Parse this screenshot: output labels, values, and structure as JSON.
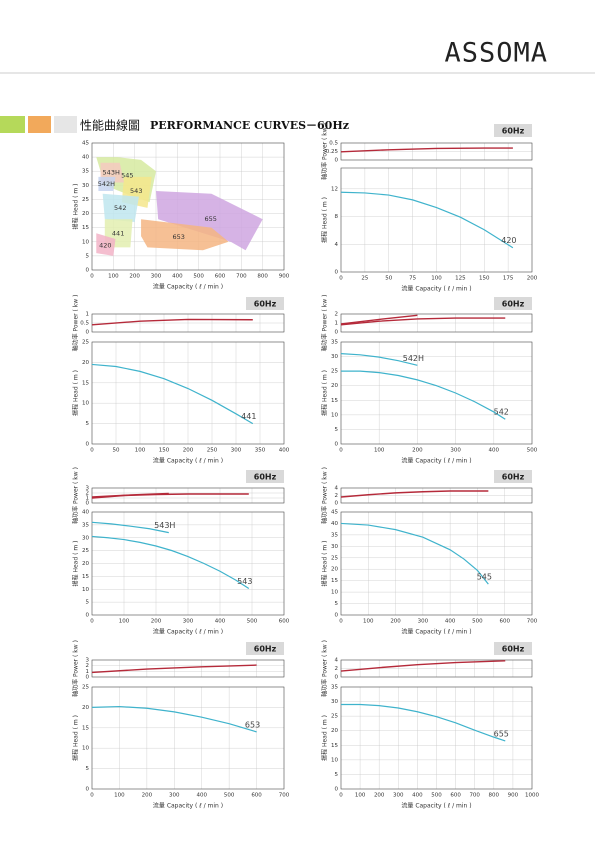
{
  "header": {
    "logo": "ASSOMA",
    "title_zh": "性能曲線圖",
    "title_en": "PERFORMANCE CURVES－60Hz"
  },
  "chart_data": [
    {
      "type": "region",
      "ylabel": "揚程 Head ( m )",
      "xlabel": "流量 Capacity ( ℓ / min )",
      "xlim": [
        0,
        900
      ],
      "xticks": [
        0,
        100,
        200,
        300,
        400,
        500,
        600,
        700,
        800,
        900
      ],
      "ylim": [
        0,
        45
      ],
      "yticks": [
        0,
        5,
        10,
        15,
        20,
        25,
        30,
        35,
        40,
        45
      ],
      "grid": true,
      "series": [
        {
          "name": "545",
          "color": "#d6eaa0",
          "x": [
            20,
            120,
            230,
            300,
            270,
            160,
            60
          ],
          "values": [
            40,
            40,
            39,
            35,
            24,
            27,
            30
          ]
        },
        {
          "name": "655",
          "color": "#cfa6e0",
          "x": [
            300,
            560,
            800,
            720,
            650,
            310
          ],
          "values": [
            28,
            27,
            18,
            7,
            10,
            18
          ]
        },
        {
          "name": "653",
          "color": "#f4b582",
          "x": [
            230,
            560,
            640,
            520,
            260,
            230
          ],
          "values": [
            18,
            15,
            10,
            7,
            8,
            12
          ]
        },
        {
          "name": "543",
          "color": "#f5e68c",
          "x": [
            150,
            280,
            260,
            140
          ],
          "values": [
            33,
            33,
            22,
            24
          ]
        },
        {
          "name": "543H",
          "color": "#f5c9c0",
          "x": [
            40,
            130,
            150,
            40
          ],
          "values": [
            38,
            38,
            31,
            31
          ]
        },
        {
          "name": "542H",
          "color": "#c6d4f0",
          "x": [
            30,
            110,
            100,
            30
          ],
          "values": [
            33,
            33,
            28,
            28
          ]
        },
        {
          "name": "542",
          "color": "#bfe6ef",
          "x": [
            50,
            220,
            200,
            60
          ],
          "values": [
            27,
            26,
            17,
            18
          ]
        },
        {
          "name": "441",
          "color": "#e3efb0",
          "x": [
            60,
            190,
            180,
            60
          ],
          "values": [
            18,
            18,
            8,
            8
          ]
        },
        {
          "name": "420",
          "color": "#f2b3c7",
          "x": [
            20,
            110,
            100,
            20
          ],
          "values": [
            13,
            11,
            5,
            6
          ]
        }
      ]
    },
    {
      "type": "pump",
      "badge": "60Hz",
      "xlabel": "流量 Capacity ( ℓ / min )",
      "xlim": [
        0,
        200
      ],
      "xticks": [
        0,
        25,
        50,
        75,
        100,
        125,
        150,
        175,
        200
      ],
      "power": {
        "ylabel": "軸功率 Power ( kw )",
        "ylim": [
          0,
          0.5
        ],
        "yticks": [
          0,
          0.25,
          0.5
        ],
        "series": [
          {
            "color": "#b52a3a",
            "x": [
              0,
              50,
              100,
              150,
              180
            ],
            "values": [
              0.24,
              0.3,
              0.34,
              0.35,
              0.35
            ]
          }
        ]
      },
      "head": {
        "ylabel": "揚程 Head ( m )",
        "ylim": [
          0,
          15
        ],
        "yticks": [
          0,
          4,
          8,
          12
        ],
        "series": [
          {
            "name": "420",
            "color": "#3fb3cc",
            "x": [
              0,
              25,
              50,
              75,
              100,
              125,
              150,
              180
            ],
            "values": [
              11.5,
              11.4,
              11.1,
              10.4,
              9.3,
              7.9,
              6.1,
              3.5
            ]
          }
        ]
      }
    },
    {
      "type": "pump",
      "badge": "60Hz",
      "xlabel": "流量 Capacity ( ℓ / min )",
      "xlim": [
        0,
        400
      ],
      "xticks": [
        0,
        50,
        100,
        150,
        200,
        250,
        300,
        350,
        400
      ],
      "power": {
        "ylabel": "軸功率 Power ( kw )",
        "ylim": [
          0,
          1
        ],
        "yticks": [
          0,
          0.5,
          1
        ],
        "series": [
          {
            "color": "#b52a3a",
            "x": [
              0,
              100,
              200,
              335
            ],
            "values": [
              0.4,
              0.6,
              0.7,
              0.68
            ]
          }
        ]
      },
      "head": {
        "ylabel": "揚程 Head ( m )",
        "ylim": [
          0,
          25
        ],
        "yticks": [
          0,
          5,
          10,
          15,
          20,
          25
        ],
        "series": [
          {
            "name": "441",
            "color": "#3fb3cc",
            "x": [
              0,
              50,
              100,
              150,
              200,
              250,
              300,
              335
            ],
            "values": [
              19.5,
              19,
              17.8,
              16,
              13.6,
              10.7,
              7.4,
              5
            ]
          }
        ]
      }
    },
    {
      "type": "pump",
      "badge": "60Hz",
      "xlabel": "流量 Capacity ( ℓ / min )",
      "xlim": [
        0,
        500
      ],
      "xticks": [
        0,
        100,
        200,
        300,
        400,
        500
      ],
      "power": {
        "ylabel": "軸功率 Power ( kw )",
        "ylim": [
          0,
          2
        ],
        "yticks": [
          0,
          1,
          2
        ],
        "series": [
          {
            "color": "#b52a3a",
            "x": [
              0,
              100,
              200
            ],
            "values": [
              0.9,
              1.4,
              1.85
            ]
          },
          {
            "color": "#b52a3a",
            "x": [
              0,
              100,
              200,
              300,
              430
            ],
            "values": [
              0.8,
              1.2,
              1.45,
              1.55,
              1.55
            ]
          }
        ]
      },
      "head": {
        "ylabel": "揚程 Head ( m )",
        "ylim": [
          0,
          35
        ],
        "yticks": [
          0,
          5,
          10,
          15,
          20,
          25,
          30,
          35
        ],
        "series": [
          {
            "name": "542H",
            "color": "#3fb3cc",
            "x": [
              0,
              50,
              100,
              150,
              200
            ],
            "values": [
              31,
              30.6,
              29.8,
              28.6,
              27
            ]
          },
          {
            "name": "542",
            "color": "#3fb3cc",
            "x": [
              0,
              50,
              100,
              150,
              200,
              250,
              300,
              350,
              400,
              430
            ],
            "values": [
              25,
              25,
              24.5,
              23.5,
              22,
              20,
              17.5,
              14.5,
              11,
              8.5
            ]
          }
        ]
      }
    },
    {
      "type": "pump",
      "badge": "60Hz",
      "xlabel": "流量 Capacity ( ℓ / min )",
      "xlim": [
        0,
        600
      ],
      "xticks": [
        0,
        100,
        200,
        300,
        400,
        500,
        600
      ],
      "power": {
        "ylabel": "軸功率 Power ( kw )",
        "ylim": [
          0,
          3
        ],
        "yticks": [
          0,
          1,
          2,
          3
        ],
        "series": [
          {
            "color": "#b52a3a",
            "x": [
              0,
              120,
              240
            ],
            "values": [
              1.2,
              1.6,
              1.9
            ]
          },
          {
            "color": "#b52a3a",
            "x": [
              0,
              100,
              200,
              300,
              400,
              490
            ],
            "values": [
              1,
              1.5,
              1.7,
              1.8,
              1.8,
              1.8
            ]
          }
        ]
      },
      "head": {
        "ylabel": "揚程 Head ( m )",
        "ylim": [
          0,
          40
        ],
        "yticks": [
          0,
          5,
          10,
          15,
          20,
          25,
          30,
          35,
          40
        ],
        "series": [
          {
            "name": "543H",
            "color": "#3fb3cc",
            "x": [
              0,
              60,
              120,
              180,
              240
            ],
            "values": [
              36,
              35.4,
              34.5,
              33.5,
              32
            ]
          },
          {
            "name": "543",
            "color": "#3fb3cc",
            "x": [
              0,
              50,
              100,
              150,
              200,
              250,
              300,
              350,
              400,
              450,
              490
            ],
            "values": [
              30.5,
              30,
              29.3,
              28.2,
              26.8,
              25,
              22.7,
              20,
              17,
              13.5,
              10.3
            ]
          }
        ]
      }
    },
    {
      "type": "pump",
      "badge": "60Hz",
      "xlabel": "流量 Capacity ( ℓ / min )",
      "xlim": [
        0,
        700
      ],
      "xticks": [
        0,
        100,
        200,
        300,
        400,
        500,
        600,
        700
      ],
      "power": {
        "ylabel": "軸功率 Power ( kw )",
        "ylim": [
          0,
          4
        ],
        "yticks": [
          0,
          2,
          4
        ],
        "series": [
          {
            "color": "#b52a3a",
            "x": [
              0,
              100,
              200,
              300,
              400,
              540
            ],
            "values": [
              1.6,
              2.2,
              2.7,
              3,
              3.2,
              3.2
            ]
          }
        ]
      },
      "head": {
        "ylabel": "揚程 Head ( m )",
        "ylim": [
          0,
          45
        ],
        "yticks": [
          0,
          5,
          10,
          15,
          20,
          25,
          30,
          35,
          40,
          45
        ],
        "series": [
          {
            "name": "545",
            "color": "#3fb3cc",
            "x": [
              0,
              100,
              200,
              300,
              400,
              450,
              500,
              540
            ],
            "values": [
              40,
              39.3,
              37.3,
              34,
              28.5,
              24.5,
              19.5,
              13.5
            ]
          }
        ]
      }
    },
    {
      "type": "pump",
      "badge": "60Hz",
      "xlabel": "流量 Capacity ( ℓ / min )",
      "xlim": [
        0,
        700
      ],
      "xticks": [
        0,
        100,
        200,
        300,
        400,
        500,
        600,
        700
      ],
      "power": {
        "ylabel": "軸功率 Power ( kw )",
        "ylim": [
          0,
          3
        ],
        "yticks": [
          0,
          1,
          2,
          3
        ],
        "series": [
          {
            "color": "#b52a3a",
            "x": [
              0,
              200,
              400,
              600
            ],
            "values": [
              0.8,
              1.4,
              1.8,
              2.1
            ]
          }
        ]
      },
      "head": {
        "ylabel": "揚程 Head ( m )",
        "ylim": [
          0,
          25
        ],
        "yticks": [
          0,
          5,
          10,
          15,
          20,
          25
        ],
        "series": [
          {
            "name": "653",
            "color": "#3fb3cc",
            "x": [
              0,
              100,
              200,
              300,
              400,
              500,
              600
            ],
            "values": [
              20,
              20.2,
              19.8,
              18.9,
              17.6,
              16,
              14
            ]
          }
        ]
      }
    },
    {
      "type": "pump",
      "badge": "60Hz",
      "xlabel": "流量 Capacity ( ℓ / min )",
      "xlim": [
        0,
        1000
      ],
      "xticks": [
        0,
        100,
        200,
        300,
        400,
        500,
        600,
        700,
        800,
        900,
        1000
      ],
      "power": {
        "ylabel": "軸功率 Power ( kw )",
        "ylim": [
          0,
          4
        ],
        "yticks": [
          0,
          2,
          4
        ],
        "series": [
          {
            "color": "#b52a3a",
            "x": [
              0,
              200,
              400,
              600,
              860
            ],
            "values": [
              1.4,
              2.2,
              2.9,
              3.4,
              3.8
            ]
          }
        ]
      },
      "head": {
        "ylabel": "揚程 Head ( m )",
        "ylim": [
          0,
          35
        ],
        "yticks": [
          0,
          5,
          10,
          15,
          20,
          25,
          30,
          35
        ],
        "series": [
          {
            "name": "655",
            "color": "#3fb3cc",
            "x": [
              0,
              100,
              200,
              300,
              400,
              500,
              600,
              700,
              800,
              860
            ],
            "values": [
              29,
              29,
              28.6,
              27.8,
              26.5,
              24.8,
              22.7,
              20.2,
              17.8,
              16.5
            ]
          }
        ]
      }
    }
  ]
}
